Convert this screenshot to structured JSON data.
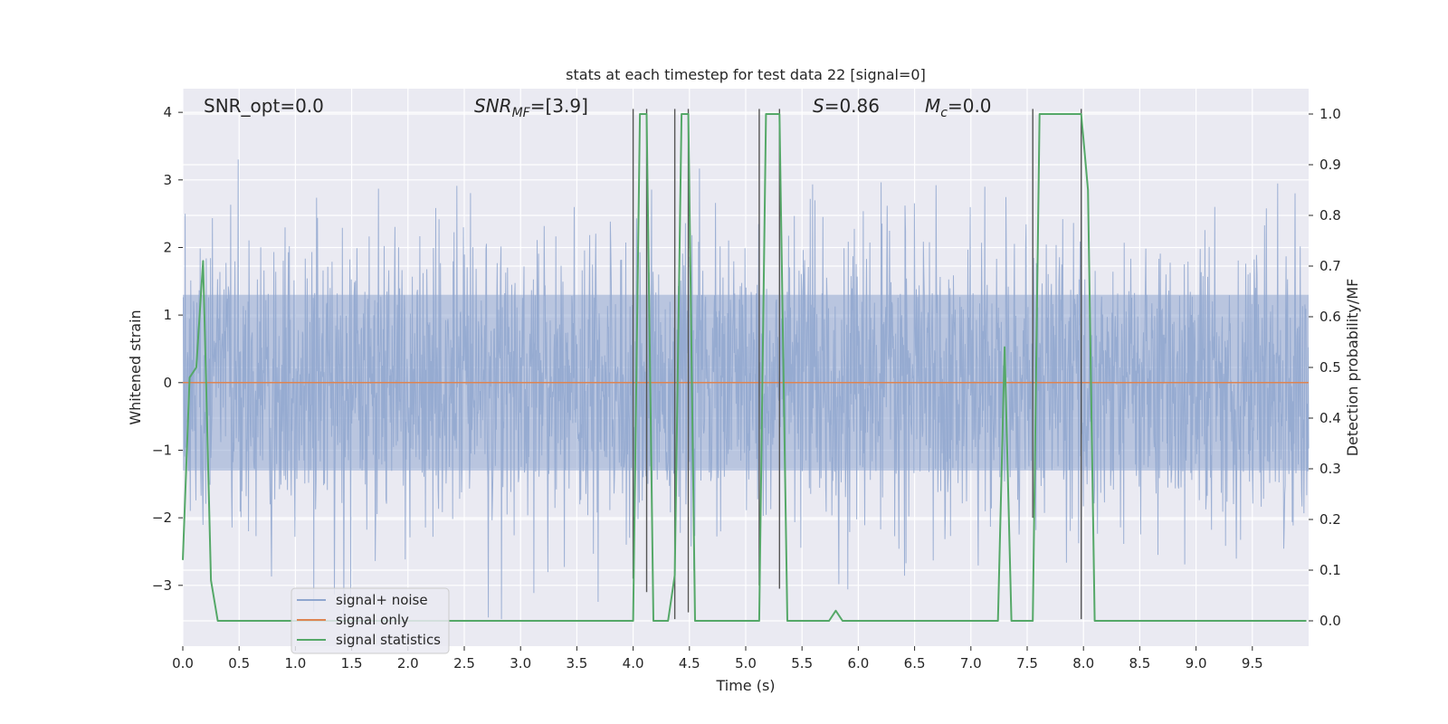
{
  "chart_data": {
    "type": "line",
    "title": "stats at each timestep for test data 22 [signal=0]",
    "xlabel": "Time (s)",
    "ylabel": "Whitened strain",
    "ylabel_right": "Detection probability/MF",
    "xlim": [
      0.0,
      10.0
    ],
    "ylim": [
      -3.9,
      4.35
    ],
    "ylim_right": [
      -0.05,
      1.05
    ],
    "x_ticks": [
      0.0,
      0.5,
      1.0,
      1.5,
      2.0,
      2.5,
      3.0,
      3.5,
      4.0,
      4.5,
      5.0,
      5.5,
      6.0,
      6.5,
      7.0,
      7.5,
      8.0,
      8.5,
      9.0,
      9.5
    ],
    "x_tick_labels": [
      "0.0",
      "0.5",
      "1.0",
      "1.5",
      "2.0",
      "2.5",
      "3.0",
      "3.5",
      "4.0",
      "4.5",
      "5.0",
      "5.5",
      "6.0",
      "6.5",
      "7.0",
      "7.5",
      "8.0",
      "8.5",
      "9.0",
      "9.5"
    ],
    "y_ticks": [
      -3,
      -2,
      -1,
      0,
      1,
      2,
      3,
      4
    ],
    "y_tick_labels": [
      "−3",
      "−2",
      "−1",
      "0",
      "1",
      "2",
      "3",
      "4"
    ],
    "y_ticks_right": [
      0.0,
      0.1,
      0.2,
      0.3,
      0.4,
      0.5,
      0.6,
      0.7,
      0.8,
      0.9,
      1.0
    ],
    "y_tick_labels_right": [
      "0.0",
      "0.1",
      "0.2",
      "0.3",
      "0.4",
      "0.5",
      "0.6",
      "0.7",
      "0.8",
      "0.9",
      "1.0"
    ],
    "grid": true,
    "legend_position": "lower-left",
    "annotations": {
      "snr_opt": "SNR_opt=0.0",
      "snr_mf_main": "SNR",
      "snr_mf_sub": "MF",
      "snr_mf_value": "=[3.9]",
      "s_symbol": "S",
      "s_value": "=0.86",
      "mc_main": "M",
      "mc_sub": "c",
      "mc_value": "=0.0"
    },
    "noise_envelope": {
      "approx_abs_range": [
        -3.5,
        3.45
      ],
      "core_band": [
        -1.3,
        1.3
      ]
    },
    "series": [
      {
        "name": "signal+ noise",
        "color": "#8fa6cf",
        "description_kind": "noise"
      },
      {
        "name": "signal only",
        "color": "#dd8452",
        "x": [
          0.0,
          10.0
        ],
        "y": [
          0.0,
          0.0
        ]
      },
      {
        "name": "signal statistics",
        "color": "#55a868",
        "axis": "right",
        "x": [
          0.0,
          0.06,
          0.12,
          0.18,
          0.25,
          0.31,
          0.37,
          4.0,
          4.06,
          4.12,
          4.18,
          4.25,
          4.31,
          4.37,
          4.43,
          4.49,
          4.55,
          4.62,
          4.68,
          5.12,
          5.18,
          5.24,
          5.3,
          5.37,
          5.43,
          5.49,
          5.74,
          5.8,
          5.86,
          5.92,
          7.24,
          7.3,
          7.36,
          7.43,
          7.55,
          7.61,
          7.67,
          7.98,
          8.04,
          8.1,
          8.16,
          9.98
        ],
        "y": [
          0.12,
          0.48,
          0.5,
          0.71,
          0.08,
          0.0,
          0.0,
          0.0,
          1.0,
          1.0,
          0.0,
          0.0,
          0.0,
          0.09,
          1.0,
          1.0,
          0.0,
          0.0,
          0.0,
          0.0,
          1.0,
          1.0,
          1.0,
          0.0,
          0.0,
          0.0,
          0.0,
          0.02,
          0.0,
          0.0,
          0.0,
          0.54,
          0.0,
          0.0,
          0.0,
          1.0,
          1.0,
          1.0,
          0.85,
          0.0,
          0.0,
          0.0
        ]
      }
    ],
    "vertical_markers": [
      {
        "x": 4.0,
        "y_range": [
          -2.9,
          4.05
        ]
      },
      {
        "x": 4.12,
        "y_range": [
          -3.1,
          4.05
        ]
      },
      {
        "x": 4.37,
        "y_range": [
          -3.5,
          4.05
        ]
      },
      {
        "x": 4.49,
        "y_range": [
          -3.4,
          4.05
        ]
      },
      {
        "x": 5.12,
        "y_range": [
          -3.0,
          4.05
        ]
      },
      {
        "x": 5.3,
        "y_range": [
          -3.05,
          4.05
        ]
      },
      {
        "x": 7.55,
        "y_range": [
          -2.0,
          4.05
        ]
      },
      {
        "x": 7.98,
        "y_range": [
          -3.5,
          4.05
        ]
      }
    ],
    "colors": {
      "plot_bg": "#eaeaf2",
      "grid": "#ffffff",
      "marker": "#555555"
    }
  }
}
